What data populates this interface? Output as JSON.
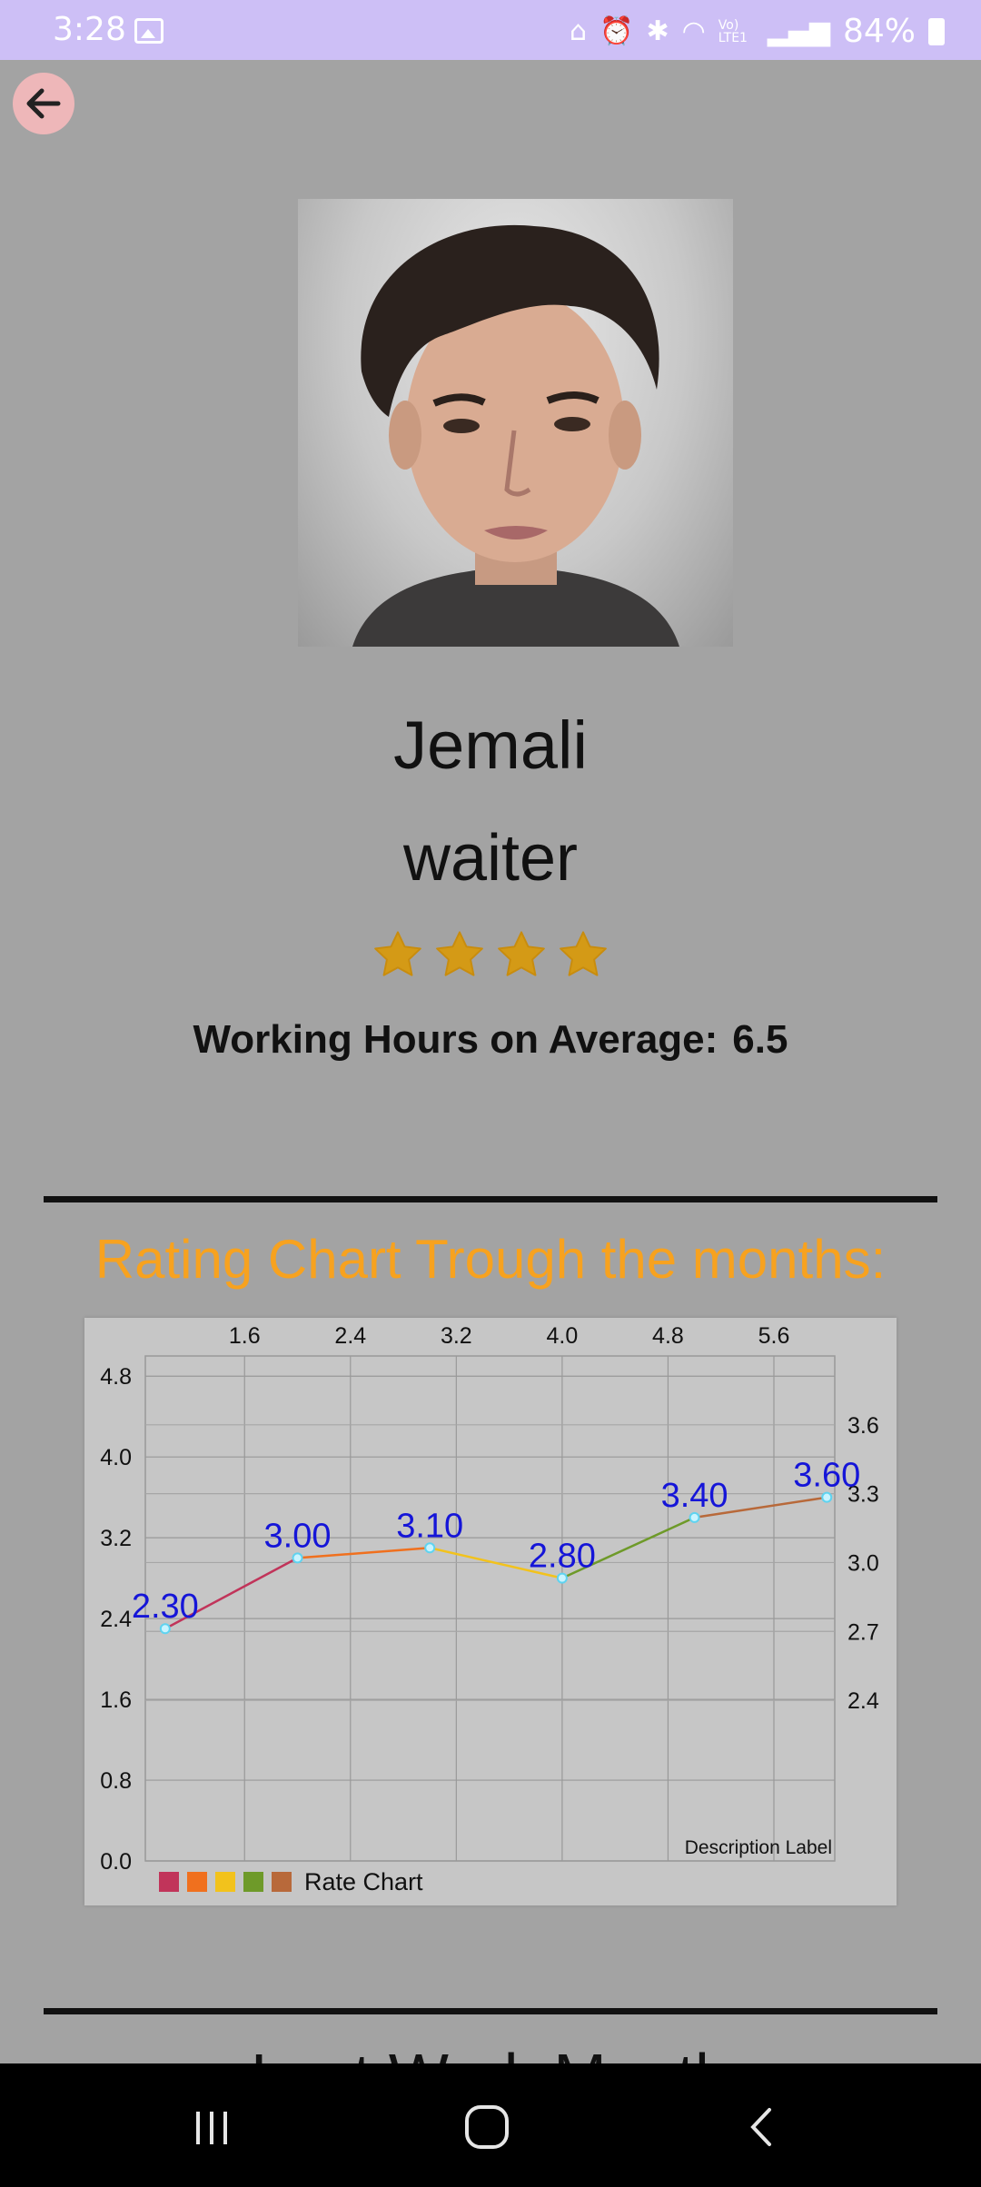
{
  "status": {
    "time": "3:28",
    "battery_pct": "84%",
    "network": "Vo) LTE1"
  },
  "profile": {
    "name": "Jemali",
    "role": "waiter",
    "rating_stars": 4,
    "hours_label": "Working Hours on Average:",
    "hours_value": "6.5"
  },
  "chart_section": {
    "title": "Rating Chart Trough the months:"
  },
  "chart_data": {
    "type": "line",
    "x": [
      1,
      2,
      3,
      4,
      5,
      6
    ],
    "values": [
      2.3,
      3.0,
      3.1,
      2.8,
      3.4,
      3.6
    ],
    "value_labels": [
      "2.30",
      "3.00",
      "3.10",
      "2.80",
      "3.40",
      "3.60"
    ],
    "segment_colors": [
      "#c1345a",
      "#f0701e",
      "#f2c21c",
      "#6e9a29",
      "#b8693a"
    ],
    "x_ticks": [
      "1.6",
      "2.4",
      "3.2",
      "4.0",
      "4.8",
      "5.6"
    ],
    "x_tick_values": [
      1.6,
      2.4,
      3.2,
      4.0,
      4.8,
      5.6
    ],
    "xlim": [
      0.85,
      6.06
    ],
    "left_y_ticks": [
      "0.0",
      "0.8",
      "1.6",
      "2.4",
      "3.2",
      "4.0",
      "4.8"
    ],
    "left_ylim": [
      0.0,
      5.0
    ],
    "right_y_ticks": [
      "2.4",
      "2.7",
      "3.0",
      "3.3",
      "3.6"
    ],
    "right_y_tick_values": [
      2.4,
      2.7,
      3.0,
      3.3,
      3.6
    ],
    "right_ylim": [
      1.7,
      3.9
    ],
    "description": "Description Label",
    "legend": "Rate Chart",
    "legend_placement": "bottom-left",
    "grid": true
  },
  "next_section": {
    "title": "Last Work Month"
  }
}
